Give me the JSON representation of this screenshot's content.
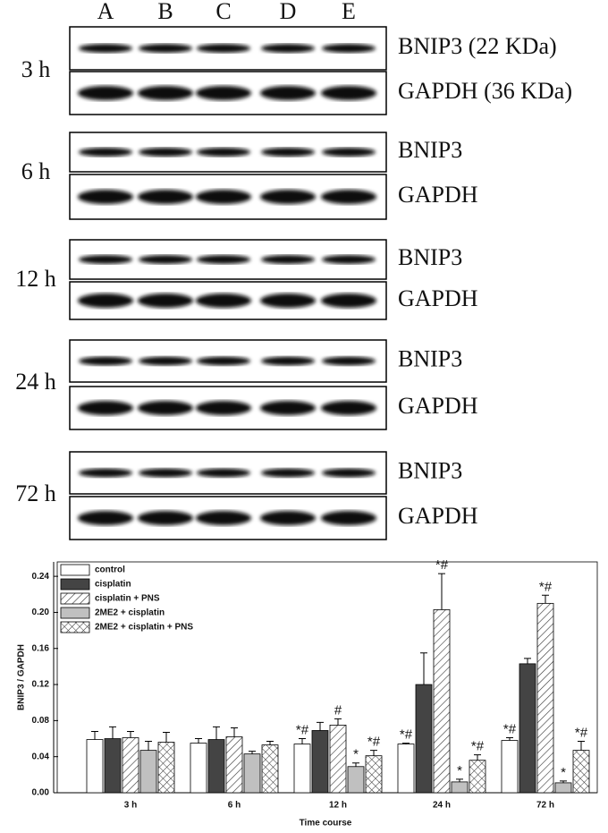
{
  "blots": {
    "lanes": [
      "A",
      "B",
      "C",
      "D",
      "E"
    ],
    "panels": [
      {
        "time": "3 h",
        "top": "BNIP3 (22 KDa)",
        "bottom": "GAPDH (36 KDa)"
      },
      {
        "time": "6 h",
        "top": "BNIP3",
        "bottom": "GAPDH"
      },
      {
        "time": "12 h",
        "top": "BNIP3",
        "bottom": "GAPDH"
      },
      {
        "time": "24 h",
        "top": "BNIP3",
        "bottom": "GAPDH"
      },
      {
        "time": "72 h",
        "top": "BNIP3",
        "bottom": "GAPDH"
      }
    ]
  },
  "chart_data": {
    "type": "bar",
    "y_label": "BNIP3 / GAPDH",
    "x_label": "Time course",
    "categories": [
      "3 h",
      "6 h",
      "12 h",
      "24 h",
      "72 h"
    ],
    "ylim": [
      0,
      0.256
    ],
    "yticks": [
      {
        "value": 0,
        "label": "0.00"
      },
      0.04,
      0.08,
      0.12,
      0.16,
      {
        "value": 0.2,
        "label": "0.20"
      },
      0.24
    ],
    "legend": "top-left",
    "series": [
      {
        "name": "control",
        "color": "#ffffff",
        "values": [
          0.059,
          0.055,
          0.054,
          0.054,
          0.058
        ],
        "errors": [
          0.009,
          0.005,
          0.006,
          0.001,
          0.003
        ],
        "annotations": [
          null,
          null,
          "*#",
          "*#",
          "*#"
        ]
      },
      {
        "name": "cisplatin",
        "color": "#444444",
        "values": [
          0.06,
          0.059,
          0.069,
          0.12,
          0.143
        ],
        "errors": [
          0.013,
          0.014,
          0.009,
          0.035,
          0.006
        ],
        "annotations": [
          null,
          null,
          null,
          null,
          null
        ]
      },
      {
        "name": "cisplatin + PNS",
        "color": "#ffffff",
        "pattern": "diagonal",
        "values": [
          0.061,
          0.062,
          0.075,
          0.203,
          0.21
        ],
        "errors": [
          0.007,
          0.01,
          0.007,
          0.04,
          0.009
        ],
        "annotations": [
          null,
          null,
          "#",
          "*#",
          "*#"
        ]
      },
      {
        "name": "2ME2 + cisplatin",
        "color": "#c0c0c0",
        "values": [
          0.047,
          0.043,
          0.029,
          0.012,
          0.011
        ],
        "errors": [
          0.01,
          0.003,
          0.004,
          0.003,
          0.002
        ],
        "annotations": [
          null,
          null,
          "*",
          "*",
          "*"
        ]
      },
      {
        "name": "2ME2 + cisplatin + PNS",
        "color": "#ffffff",
        "pattern": "cross",
        "values": [
          0.056,
          0.053,
          0.041,
          0.036,
          0.047
        ],
        "errors": [
          0.011,
          0.004,
          0.006,
          0.006,
          0.01
        ],
        "annotations": [
          null,
          null,
          "*#",
          "*#",
          "*#"
        ]
      }
    ]
  }
}
